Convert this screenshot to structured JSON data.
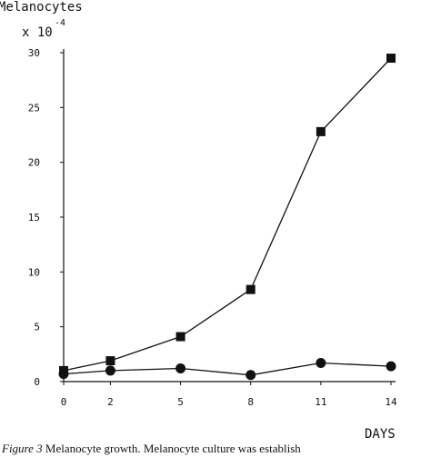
{
  "chart_data": {
    "type": "line",
    "title": "",
    "ylabel": "Melanocytes",
    "ylabel_unit": "x 10",
    "ylabel_exponent": "-4",
    "xlabel": "DAYS",
    "x_ticks": [
      0,
      2,
      5,
      8,
      11,
      14
    ],
    "y_ticks": [
      0,
      5,
      10,
      15,
      20,
      25,
      30
    ],
    "xlim": [
      0,
      14
    ],
    "ylim": [
      0,
      30
    ],
    "grid": false,
    "series": [
      {
        "marker": "square",
        "x": [
          0,
          2,
          5,
          8,
          11,
          14
        ],
        "y": [
          1.0,
          1.9,
          4.1,
          8.4,
          22.8,
          29.5
        ]
      },
      {
        "marker": "circle",
        "x": [
          0,
          2,
          5,
          8,
          11,
          14
        ],
        "y": [
          0.7,
          1.0,
          1.2,
          0.6,
          1.7,
          1.4
        ]
      }
    ],
    "colors": {
      "line": "#111111",
      "marker": "#111111",
      "axis": "#111111"
    }
  },
  "caption": {
    "label": "Figure 3",
    "text": "Melanocyte growth. Melanocyte culture was establish"
  }
}
